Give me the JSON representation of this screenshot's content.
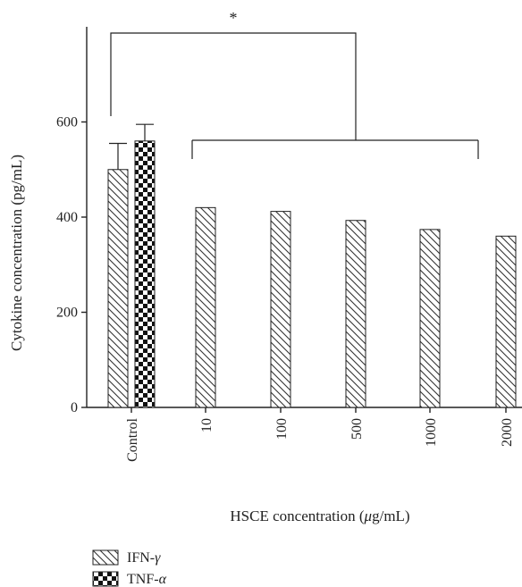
{
  "chart_data": {
    "type": "bar",
    "ylabel": "Cytokine concentration (pg/mL)",
    "xlabel_prefix": "HSCE concentration (",
    "xlabel_mu": "μ",
    "xlabel_suffix": "g/mL)",
    "categories": [
      "Control",
      "10",
      "100",
      "500",
      "1000",
      "2000"
    ],
    "ylim": [
      0,
      700
    ],
    "yticks": [
      0,
      200,
      400,
      600
    ],
    "series": [
      {
        "name": "IFN-γ",
        "name_prefix": "IFN-",
        "name_greek": "γ",
        "pattern": "diagonal-hatch",
        "values": [
          500,
          420,
          412,
          393,
          374,
          360
        ],
        "error": [
          55,
          null,
          null,
          null,
          null,
          null
        ]
      },
      {
        "name": "TNF-α",
        "name_prefix": "TNF-",
        "name_greek": "α",
        "pattern": "checkerboard",
        "values": [
          560,
          null,
          null,
          null,
          null,
          null
        ],
        "error": [
          35,
          null,
          null,
          null,
          null,
          null
        ]
      }
    ],
    "significance": {
      "label": "*"
    },
    "legend_position": "bottom-left",
    "grid": false
  }
}
